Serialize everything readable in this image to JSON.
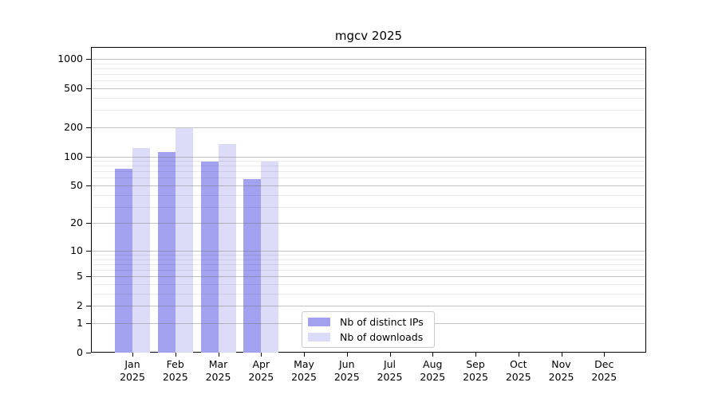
{
  "chart_data": {
    "type": "bar",
    "title": "mgcv 2025",
    "xlabel": "",
    "ylabel": "",
    "yscale": "log1p",
    "ylim": [
      0,
      1200
    ],
    "yticks": [
      0,
      1,
      2,
      5,
      10,
      20,
      50,
      100,
      200,
      500,
      1000
    ],
    "minor_gridlines": [
      3,
      4,
      6,
      7,
      8,
      9,
      30,
      40,
      60,
      70,
      80,
      90,
      300,
      400,
      600,
      700,
      800,
      900
    ],
    "grid": "on",
    "legend_position": "lower center-left inside plot",
    "categories": [
      {
        "month": "Jan",
        "year": "2025"
      },
      {
        "month": "Feb",
        "year": "2025"
      },
      {
        "month": "Mar",
        "year": "2025"
      },
      {
        "month": "Apr",
        "year": "2025"
      },
      {
        "month": "May",
        "year": "2025"
      },
      {
        "month": "Jun",
        "year": "2025"
      },
      {
        "month": "Jul",
        "year": "2025"
      },
      {
        "month": "Aug",
        "year": "2025"
      },
      {
        "month": "Sep",
        "year": "2025"
      },
      {
        "month": "Oct",
        "year": "2025"
      },
      {
        "month": "Nov",
        "year": "2025"
      },
      {
        "month": "Dec",
        "year": "2025"
      }
    ],
    "series": [
      {
        "name": "Nb of distinct IPs",
        "color": "#a2a2f0",
        "values": [
          75,
          112,
          88,
          58,
          null,
          null,
          null,
          null,
          null,
          null,
          null,
          null
        ]
      },
      {
        "name": "Nb of downloads",
        "color": "#dcdcf8",
        "values": [
          123,
          197,
          135,
          88,
          null,
          null,
          null,
          null,
          null,
          null,
          null,
          null
        ]
      }
    ]
  }
}
